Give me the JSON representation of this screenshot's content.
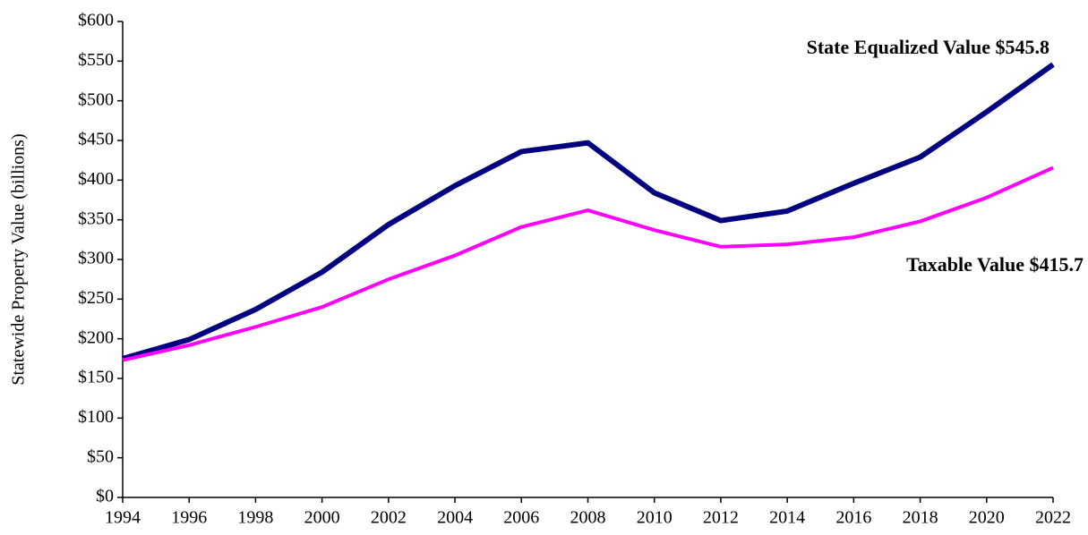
{
  "chart_data": {
    "type": "line",
    "y_label": "Statewide Property Value (billions)",
    "x": [
      1994,
      1996,
      1998,
      2000,
      2002,
      2004,
      2006,
      2008,
      2010,
      2012,
      2014,
      2016,
      2018,
      2020,
      2022
    ],
    "series": [
      {
        "name": "State Equalized Value $545.8",
        "color": "#000080",
        "values": [
          175,
          199,
          237,
          284,
          344,
          393,
          436,
          447,
          384,
          349,
          361,
          396,
          429,
          486,
          545.8
        ]
      },
      {
        "name": "Taxable Value $415.7",
        "color": "#ff00ff",
        "values": [
          173,
          192,
          215,
          240,
          275,
          305,
          341,
          362,
          337,
          316,
          319,
          328,
          348,
          378,
          415.7
        ]
      }
    ],
    "xlim": [
      1994,
      2022
    ],
    "xticks": [
      1994,
      1996,
      1998,
      2000,
      2002,
      2004,
      2006,
      2008,
      2010,
      2012,
      2014,
      2016,
      2018,
      2020,
      2022
    ],
    "ylim": [
      0,
      600
    ],
    "yticks": [
      {
        "value": 0,
        "label": "$0"
      },
      {
        "value": 50,
        "label": "$50"
      },
      {
        "value": 100,
        "label": "$100"
      },
      {
        "value": 150,
        "label": "$150"
      },
      {
        "value": 200,
        "label": "$200"
      },
      {
        "value": 250,
        "label": "$250"
      },
      {
        "value": 300,
        "label": "$300"
      },
      {
        "value": 350,
        "label": "$350"
      },
      {
        "value": 400,
        "label": "$400"
      },
      {
        "value": 450,
        "label": "$450"
      },
      {
        "value": 500,
        "label": "$500"
      },
      {
        "value": 550,
        "label": "$550"
      },
      {
        "value": 600,
        "label": "$600"
      }
    ],
    "grid": false
  }
}
